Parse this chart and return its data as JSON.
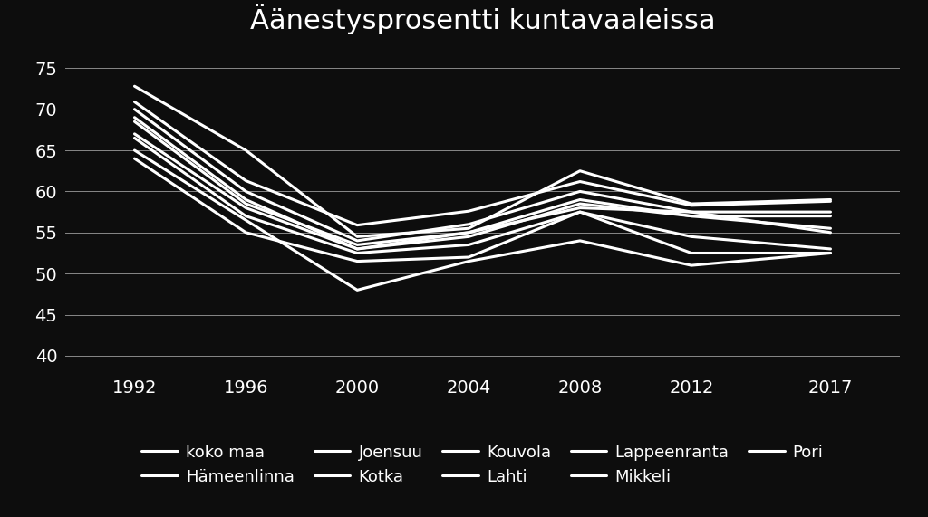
{
  "title": "Äänestysprosentti kuntavaaleissa",
  "years": [
    1992,
    1996,
    2000,
    2004,
    2008,
    2012,
    2017
  ],
  "series": {
    "koko maa": [
      70.9,
      61.3,
      55.9,
      57.6,
      61.2,
      58.3,
      58.8
    ],
    "Hämeenlinna": [
      70.0,
      60.0,
      54.0,
      56.0,
      60.0,
      57.5,
      57.5
    ],
    "Joensuu": [
      68.5,
      58.5,
      53.5,
      55.0,
      59.0,
      57.0,
      57.0
    ],
    "Kotka": [
      66.5,
      57.0,
      52.5,
      53.5,
      57.5,
      54.5,
      53.0
    ],
    "Kouvola": [
      72.8,
      65.0,
      54.5,
      55.5,
      62.5,
      58.5,
      59.0
    ],
    "Lahti": [
      64.0,
      55.0,
      51.5,
      52.0,
      57.5,
      52.5,
      52.5
    ],
    "Lappeenranta": [
      69.0,
      59.0,
      53.0,
      54.5,
      58.5,
      57.0,
      55.5
    ],
    "Mikkeli": [
      67.0,
      58.0,
      53.0,
      55.0,
      58.0,
      57.5,
      55.0
    ],
    "Pori": [
      65.0,
      56.5,
      48.0,
      51.5,
      54.0,
      51.0,
      52.5
    ]
  },
  "background_color": "#0d0d0d",
  "line_color": "#ffffff",
  "text_color": "#ffffff",
  "grid_color": "#888888",
  "ylim": [
    38,
    77
  ],
  "yticks": [
    40,
    45,
    50,
    55,
    60,
    65,
    70,
    75
  ],
  "xticks": [
    1992,
    1996,
    2000,
    2004,
    2008,
    2012,
    2017
  ],
  "title_fontsize": 22,
  "tick_fontsize": 14,
  "legend_fontsize": 13,
  "linewidth": 2.2
}
